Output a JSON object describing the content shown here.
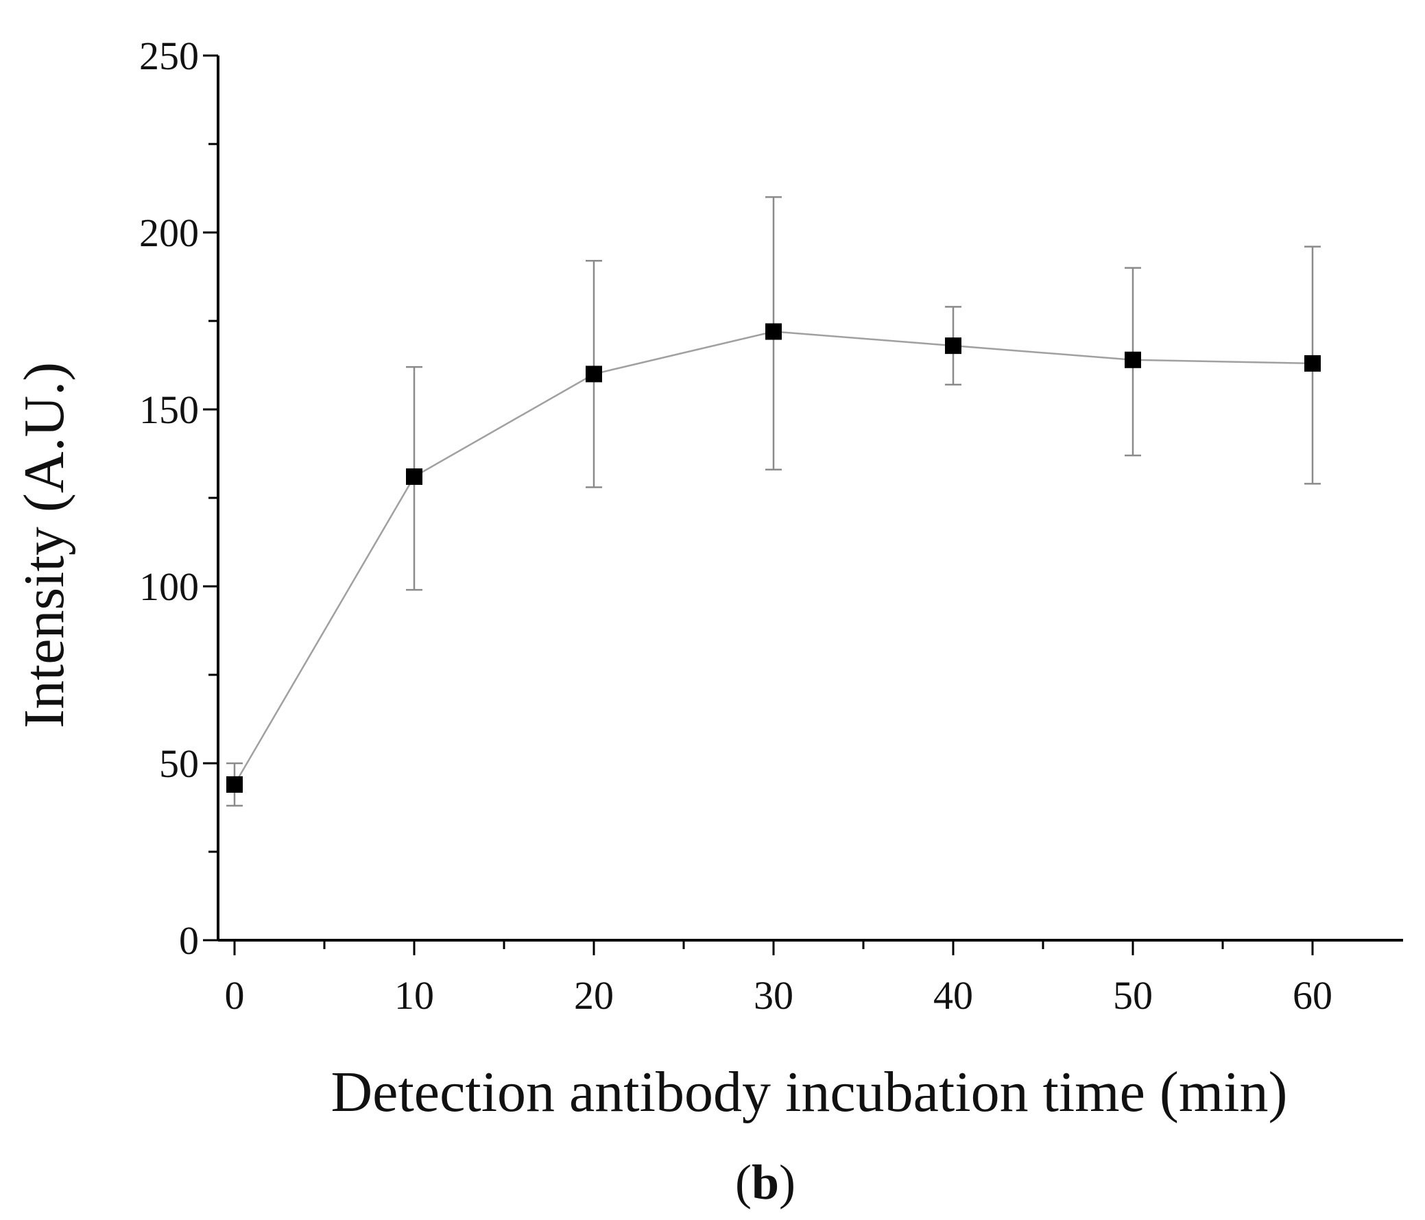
{
  "chart_data": {
    "type": "scatter",
    "xlabel": "Detection antibody incubation time (min)",
    "ylabel": "Intensity (A.U.)",
    "panel_label": "b",
    "xlim": [
      -1,
      65
    ],
    "ylim": [
      0,
      250
    ],
    "x_ticks": [
      0,
      10,
      20,
      30,
      40,
      50,
      60
    ],
    "y_ticks": [
      0,
      50,
      100,
      150,
      200,
      250
    ],
    "y_minor_step": 25,
    "grid": false,
    "legend": "none",
    "colors": {
      "marker": "#000000",
      "line": "#a0a0a0",
      "errorbar": "#8a8a8a",
      "axis": "#000000"
    },
    "series": [
      {
        "x": [
          0,
          10,
          20,
          30,
          40,
          50,
          60
        ],
        "y": [
          44,
          131,
          160,
          172,
          168,
          164,
          163
        ],
        "err_low": [
          38,
          99,
          128,
          133,
          157,
          137,
          129
        ],
        "err_high": [
          50,
          162,
          192,
          210,
          179,
          190,
          196
        ]
      }
    ]
  }
}
